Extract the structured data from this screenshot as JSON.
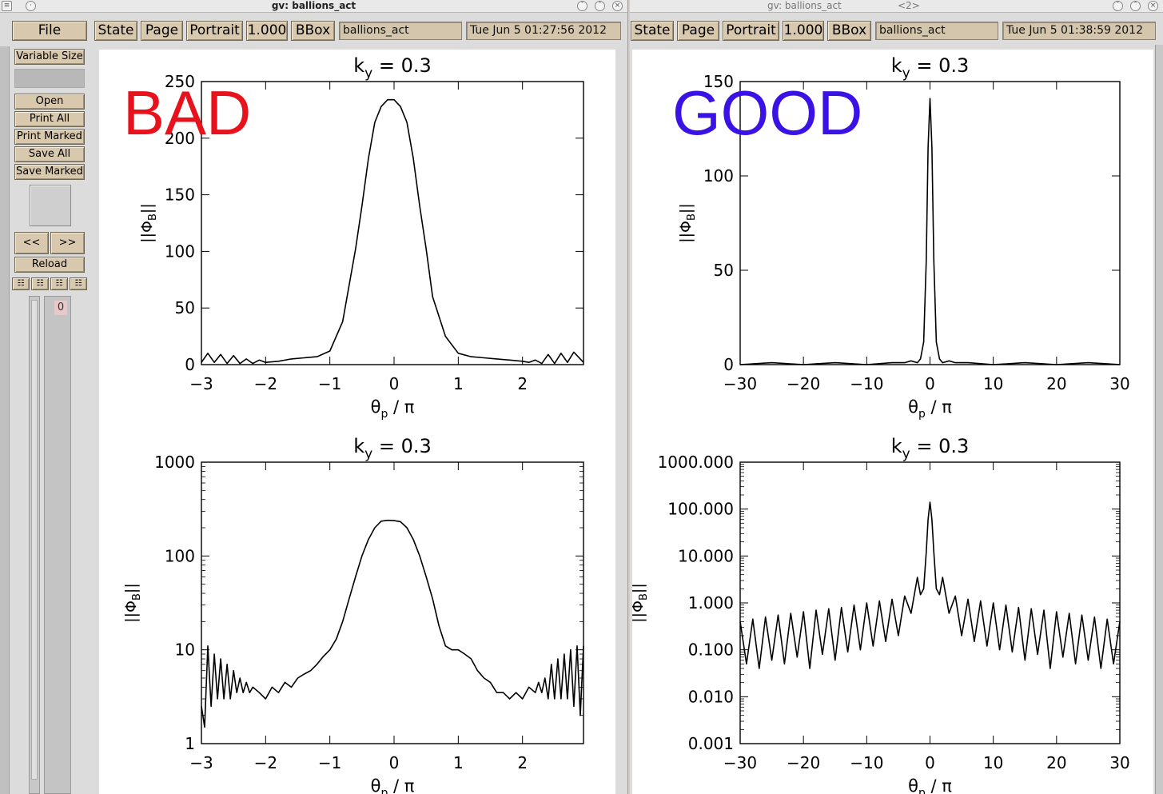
{
  "left_window": {
    "title": "gv: ballions_act",
    "file_label": "File",
    "toolbar": {
      "state": "State",
      "page": "Page",
      "orientation": "Portrait",
      "zoom": "1.000",
      "bbox": "BBox",
      "filename": "ballions_act",
      "date": "Tue Jun  5 01:27:56 2012"
    },
    "sidebar": {
      "variable_size": "Variable Size",
      "open": "Open",
      "print_all": "Print All",
      "print_marked": "Print Marked",
      "save_all": "Save All",
      "save_marked": "Save Marked",
      "prev": "<<",
      "next": ">>",
      "reload": "Reload",
      "page_number": "0"
    },
    "overlay": {
      "text": "BAD",
      "color": "#e8121c"
    }
  },
  "right_window": {
    "title": "gv: ballions_act",
    "title_suffix": "<2>",
    "toolbar": {
      "state": "State",
      "page": "Page",
      "orientation": "Portrait",
      "zoom": "1.000",
      "bbox": "BBox",
      "filename": "ballions_act",
      "date": "Tue Jun  5 01:38:59 2012"
    },
    "overlay": {
      "text": "GOOD",
      "color": "#3a12e6"
    }
  },
  "chart_data": [
    {
      "type": "line",
      "title": "k_y = 0.3",
      "xlabel": "θ_p / π",
      "ylabel": "||Φ_B||",
      "xlim": [
        -3,
        2.95
      ],
      "ylim": [
        0,
        250
      ],
      "x_ticks": [
        -3,
        -2,
        -1,
        0,
        1,
        2
      ],
      "x_tick_labels": [
        "−3",
        "−2",
        "−1",
        "0",
        "1",
        "2"
      ],
      "y_ticks": [
        0,
        50,
        100,
        150,
        200,
        250
      ],
      "y_tick_labels": [
        "0",
        "50",
        "100",
        "150",
        "200",
        "250"
      ],
      "series": [
        {
          "x": [
            -3.0,
            -2.9,
            -2.8,
            -2.7,
            -2.6,
            -2.5,
            -2.4,
            -2.3,
            -2.2,
            -2.1,
            -2.0,
            -1.8,
            -1.6,
            -1.4,
            -1.2,
            -1.0,
            -0.8,
            -0.6,
            -0.5,
            -0.4,
            -0.3,
            -0.2,
            -0.1,
            0.0,
            0.1,
            0.2,
            0.3,
            0.4,
            0.5,
            0.6,
            0.8,
            1.0,
            1.2,
            1.4,
            1.6,
            1.8,
            2.0,
            2.1,
            2.2,
            2.3,
            2.4,
            2.5,
            2.6,
            2.7,
            2.8,
            2.95
          ],
          "y": [
            2,
            10,
            2,
            9,
            1,
            8,
            1,
            5,
            1,
            4,
            2,
            3,
            5,
            6,
            7,
            12,
            38,
            102,
            140,
            182,
            214,
            228,
            234,
            234,
            228,
            214,
            182,
            140,
            102,
            60,
            25,
            10,
            7,
            6,
            5,
            4,
            3,
            2,
            4,
            1,
            9,
            1,
            10,
            2,
            11,
            2
          ]
        }
      ]
    },
    {
      "type": "line",
      "title": "k_y = 0.3",
      "xlabel": "θ_p / π",
      "ylabel": "||Φ_B||",
      "xlim": [
        -30,
        30
      ],
      "ylim": [
        0,
        150
      ],
      "x_ticks": [
        -30,
        -20,
        -10,
        0,
        10,
        20,
        30
      ],
      "x_tick_labels": [
        "−30",
        "−20",
        "−10",
        "0",
        "10",
        "20",
        "30"
      ],
      "y_ticks": [
        0,
        50,
        100,
        150
      ],
      "y_tick_labels": [
        "0",
        "50",
        "100",
        "150"
      ],
      "series": [
        {
          "x": [
            -30,
            -25,
            -20,
            -15,
            -10,
            -6,
            -4,
            -3,
            -2,
            -1.5,
            -1,
            -0.6,
            -0.3,
            0,
            0.3,
            0.6,
            1,
            1.5,
            2,
            3,
            4,
            6,
            10,
            15,
            20,
            25,
            30
          ],
          "y": [
            0,
            1,
            0,
            1,
            0,
            1,
            1,
            2,
            1,
            3,
            12,
            55,
            115,
            141,
            115,
            55,
            12,
            3,
            1,
            2,
            1,
            1,
            0,
            1,
            0,
            1,
            0
          ]
        }
      ]
    },
    {
      "type": "line",
      "title": "k_y = 0.3",
      "xlabel": "θ_p / π",
      "ylabel": "||Φ_B||",
      "xlim": [
        -3,
        2.95
      ],
      "ylim": [
        1,
        1000
      ],
      "yscale": "log",
      "x_ticks": [
        -3,
        -2,
        -1,
        0,
        1,
        2
      ],
      "x_tick_labels": [
        "−3",
        "−2",
        "−1",
        "0",
        "1",
        "2"
      ],
      "y_ticks": [
        1,
        10,
        100,
        1000
      ],
      "y_tick_labels": [
        "1",
        "10",
        "100",
        "1000"
      ],
      "series": [
        {
          "x": [
            -3.0,
            -2.95,
            -2.9,
            -2.85,
            -2.8,
            -2.75,
            -2.7,
            -2.65,
            -2.6,
            -2.55,
            -2.5,
            -2.45,
            -2.4,
            -2.35,
            -2.3,
            -2.25,
            -2.2,
            -2.1,
            -2.0,
            -1.9,
            -1.8,
            -1.7,
            -1.6,
            -1.5,
            -1.4,
            -1.3,
            -1.2,
            -1.1,
            -1.0,
            -0.9,
            -0.8,
            -0.7,
            -0.6,
            -0.5,
            -0.4,
            -0.3,
            -0.2,
            -0.1,
            0.0,
            0.1,
            0.2,
            0.3,
            0.4,
            0.5,
            0.6,
            0.7,
            0.8,
            0.9,
            1.0,
            1.1,
            1.2,
            1.3,
            1.4,
            1.5,
            1.6,
            1.7,
            1.8,
            1.9,
            2.0,
            2.1,
            2.2,
            2.25,
            2.3,
            2.35,
            2.4,
            2.45,
            2.5,
            2.55,
            2.6,
            2.65,
            2.7,
            2.75,
            2.8,
            2.85,
            2.9,
            2.95
          ],
          "y": [
            2.5,
            1.5,
            11,
            2.5,
            9,
            3,
            8,
            3,
            7,
            3,
            6,
            3.5,
            5,
            3.5,
            4.5,
            3.5,
            4,
            3.5,
            3,
            4,
            3.5,
            4.5,
            4,
            5,
            5.5,
            6,
            7,
            8.5,
            10,
            13,
            20,
            35,
            60,
            100,
            150,
            200,
            235,
            240,
            238,
            232,
            200,
            150,
            100,
            60,
            35,
            18,
            11,
            10,
            10,
            9,
            8,
            6,
            5,
            4.5,
            3.5,
            3.5,
            3,
            3.5,
            3,
            4,
            3.5,
            4.5,
            3.5,
            5,
            3,
            7,
            3,
            8,
            3,
            9,
            3,
            10,
            2.5,
            11,
            2,
            11
          ]
        }
      ]
    },
    {
      "type": "line",
      "title": "k_y = 0.3",
      "xlabel": "θ_p / π",
      "ylabel": "||Φ_B||",
      "xlim": [
        -30,
        30
      ],
      "ylim": [
        0.001,
        1000
      ],
      "yscale": "log",
      "x_ticks": [
        -30,
        -20,
        -10,
        0,
        10,
        20,
        30
      ],
      "x_tick_labels": [
        "−30",
        "−20",
        "−10",
        "0",
        "10",
        "20",
        "30"
      ],
      "y_ticks": [
        0.001,
        0.01,
        0.1,
        1,
        10,
        100,
        1000
      ],
      "y_tick_labels": [
        "0.001",
        "0.010",
        "0.100",
        "1.000",
        "10.000",
        "100.000",
        "1000.000"
      ],
      "series": [
        {
          "x": [
            -30,
            -29,
            -28,
            -27,
            -26,
            -25,
            -24,
            -23,
            -22,
            -21,
            -20,
            -19,
            -18,
            -17,
            -16,
            -15,
            -14,
            -13,
            -12,
            -11,
            -10,
            -9,
            -8,
            -7,
            -6,
            -5,
            -4,
            -3,
            -2,
            -1.5,
            -1,
            -0.6,
            -0.3,
            0,
            0.3,
            0.6,
            1,
            1.5,
            2,
            3,
            4,
            5,
            6,
            7,
            8,
            9,
            10,
            11,
            12,
            13,
            14,
            15,
            16,
            17,
            18,
            19,
            20,
            21,
            22,
            23,
            24,
            25,
            26,
            27,
            28,
            29,
            30
          ],
          "y": [
            0.4,
            0.05,
            0.45,
            0.04,
            0.5,
            0.06,
            0.55,
            0.05,
            0.6,
            0.07,
            0.65,
            0.04,
            0.7,
            0.08,
            0.75,
            0.06,
            0.8,
            0.09,
            0.9,
            0.1,
            1.0,
            0.12,
            1.1,
            0.15,
            1.2,
            0.2,
            1.4,
            0.6,
            3.5,
            1.5,
            2,
            12,
            60,
            140,
            60,
            12,
            2,
            1.5,
            3.5,
            0.6,
            1.4,
            0.2,
            1.2,
            0.15,
            1.1,
            0.12,
            1.0,
            0.1,
            0.9,
            0.09,
            0.8,
            0.06,
            0.75,
            0.08,
            0.7,
            0.04,
            0.65,
            0.07,
            0.6,
            0.05,
            0.55,
            0.06,
            0.5,
            0.04,
            0.45,
            0.05,
            0.4
          ]
        }
      ]
    }
  ]
}
